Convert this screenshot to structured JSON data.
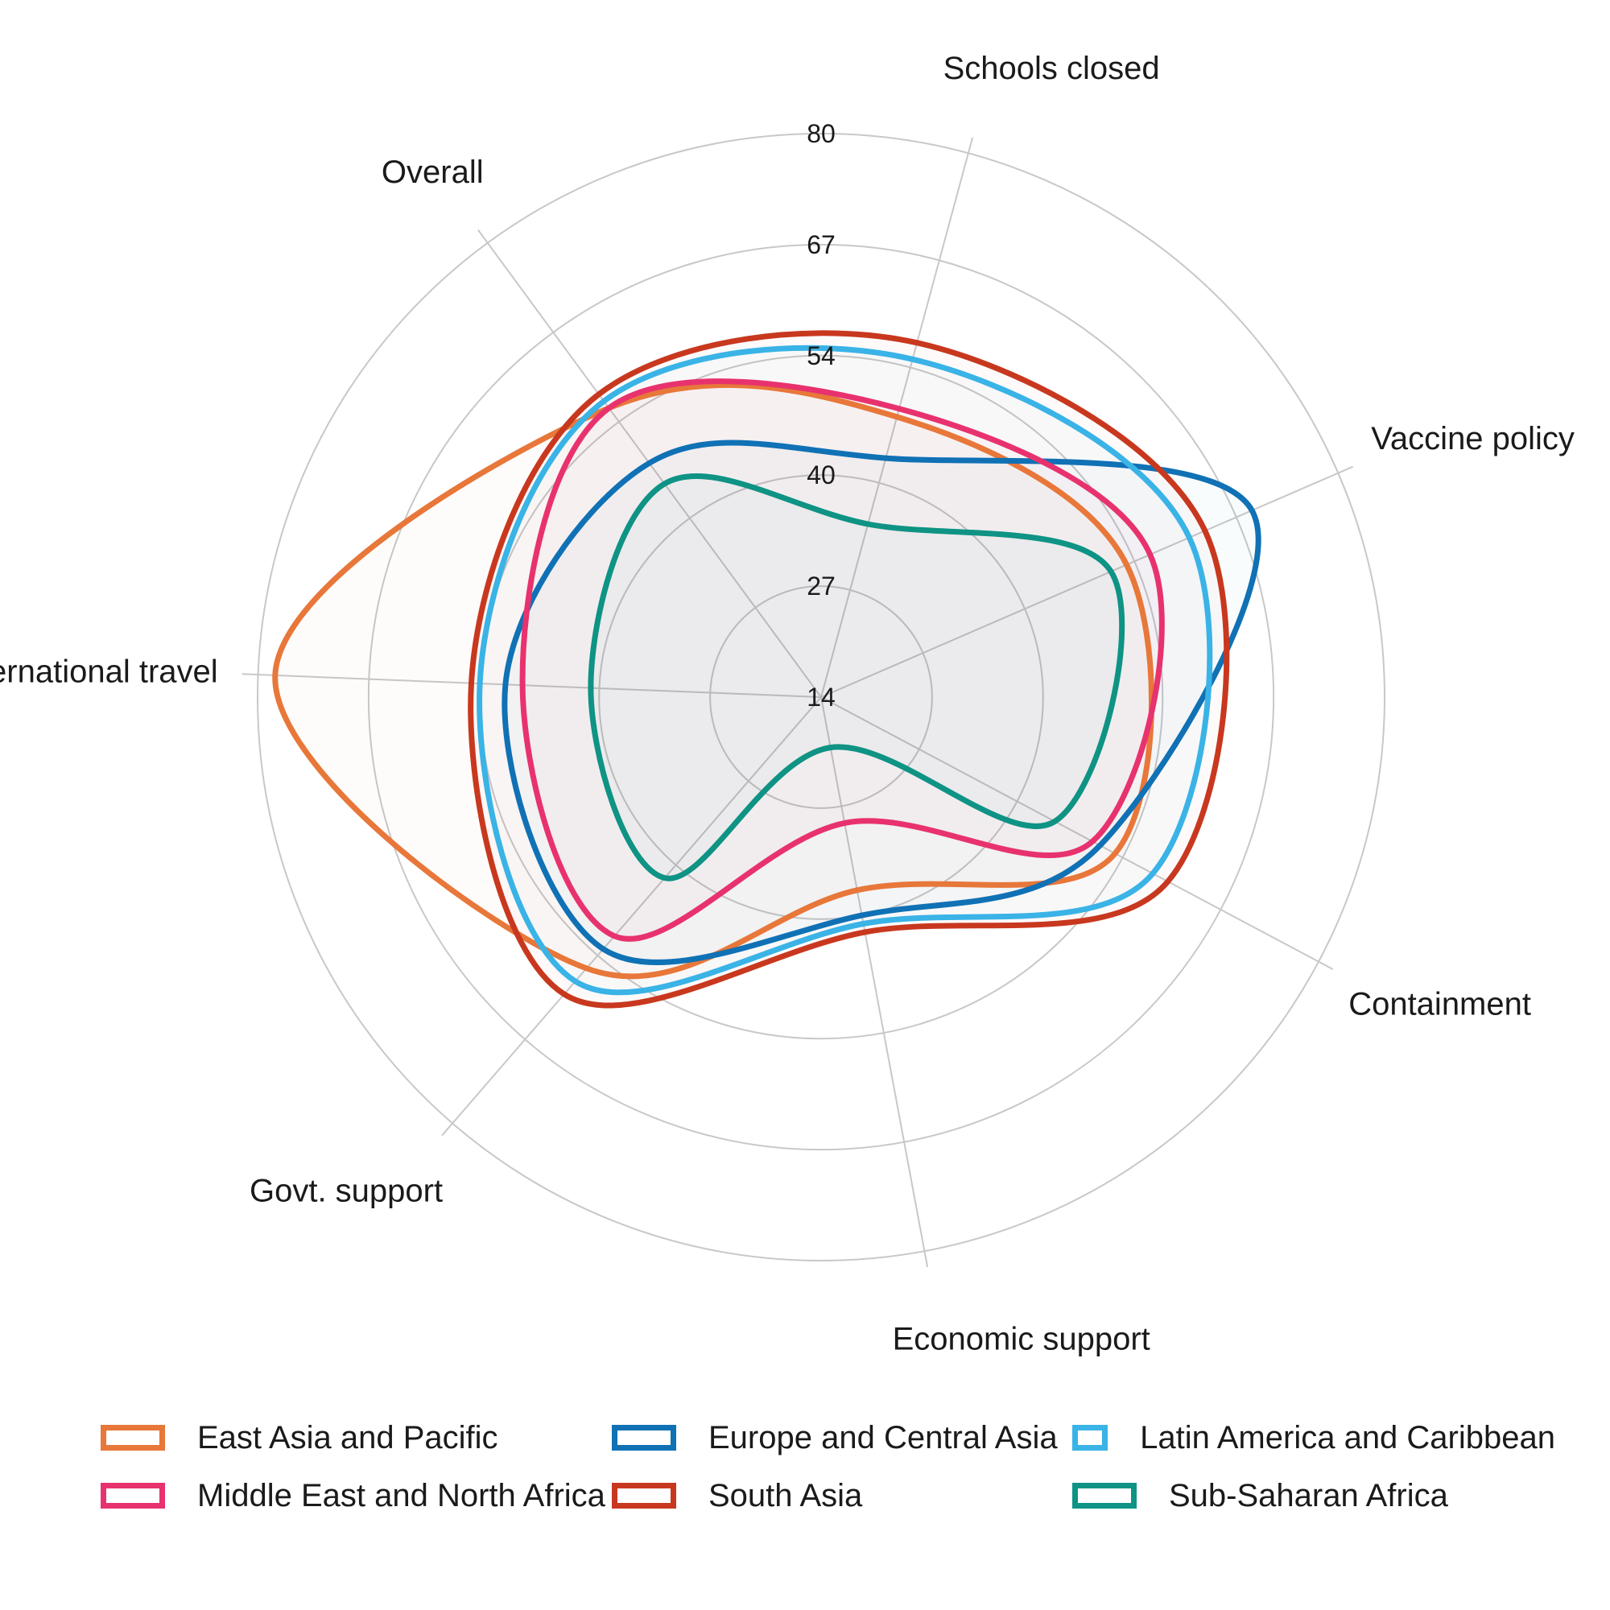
{
  "chart_data": {
    "type": "radar",
    "title": "",
    "axes": [
      "Containment",
      "Economic support",
      "Govt. support",
      "International travel",
      "Overall",
      "Schools closed",
      "Vaccine policy"
    ],
    "radial_ticks": [
      "14",
      "27",
      "40",
      "54",
      "67",
      "80"
    ],
    "rlim": [
      14,
      80
    ],
    "grid": true,
    "legend_position": "bottom",
    "series": [
      {
        "name": "East Asia and Pacific",
        "color": "#E8773A",
        "values": [
          53,
          37,
          56,
          78,
          56,
          48,
          53
        ]
      },
      {
        "name": "Europe and Central Asia",
        "color": "#1071B5",
        "values": [
          51,
          40,
          53,
          51,
          48,
          43,
          69
        ]
      },
      {
        "name": "Latin America and Caribbean",
        "color": "#3AB3E6",
        "values": [
          58,
          41,
          58,
          54,
          57,
          55,
          61
        ]
      },
      {
        "name": "Middle East and North Africa",
        "color": "#E8326E",
        "values": [
          50,
          29,
          51,
          49,
          56,
          49,
          56
        ]
      },
      {
        "name": "South Asia",
        "color": "#C8381E",
        "values": [
          60,
          42,
          60,
          55,
          58,
          57,
          63
        ]
      },
      {
        "name": "Sub-Saharan Africa",
        "color": "#0E9384",
        "values": [
          45,
          20,
          42,
          41,
          45,
          35,
          51
        ]
      }
    ]
  }
}
